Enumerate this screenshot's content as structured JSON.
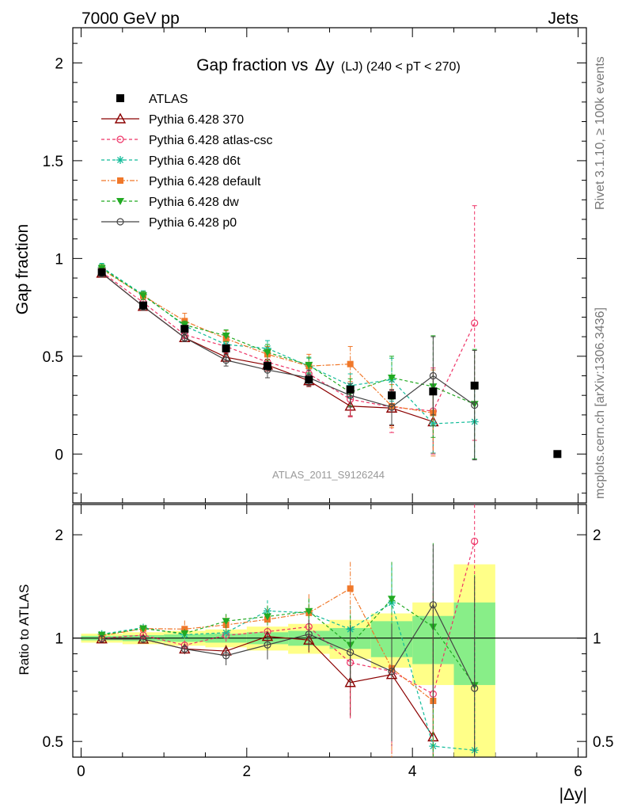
{
  "header": {
    "left": "7000 GeV pp",
    "right": "Jets"
  },
  "side_text": {
    "rivet": "Rivet 3.1.10, ≥ 100k events",
    "source": "mcplots.cern.ch [arXiv:1306.3436]"
  },
  "chart_data": {
    "type": "line",
    "title_main": "Gap fraction vs",
    "title_symbol": "Δy",
    "title_sub": "(LJ) (240 < pT < 270)",
    "watermark": "ATLAS_2011_S9126244",
    "xlabel": "|Δy|",
    "ylabel_top": "Gap fraction",
    "ylabel_bottom": "Ratio to ATLAS",
    "xlim": [
      -0.1,
      6.1
    ],
    "ylim_top": [
      -0.25,
      2.18
    ],
    "ylim_bottom": [
      0.45,
      2.45
    ],
    "ratio_scale": "log",
    "x_ticks": [
      "0",
      "2",
      "4",
      "6"
    ],
    "y_ticks_top": [
      "0",
      "0.5",
      "1",
      "1.5",
      "2"
    ],
    "y_ticks_bottom": [
      "0.5",
      "1",
      "2"
    ],
    "x": [
      0.25,
      0.75,
      1.25,
      1.75,
      2.25,
      2.75,
      3.25,
      3.75,
      4.25,
      4.75
    ],
    "data": {
      "name": "ATLAS",
      "values": [
        0.93,
        0.76,
        0.64,
        0.54,
        0.45,
        0.38,
        0.33,
        0.3,
        0.32,
        0.35
      ],
      "extra_x": 5.75,
      "extra_value": 0.0
    },
    "band_errors": [
      {
        "x0": 0.0,
        "x1": 0.5,
        "stat": 0.015,
        "tot": 0.03
      },
      {
        "x0": 0.5,
        "x1": 1.0,
        "stat": 0.02,
        "tot": 0.04
      },
      {
        "x0": 1.0,
        "x1": 1.5,
        "stat": 0.025,
        "tot": 0.05
      },
      {
        "x0": 1.5,
        "x1": 2.0,
        "stat": 0.03,
        "tot": 0.06
      },
      {
        "x0": 2.0,
        "x1": 2.5,
        "stat": 0.04,
        "tot": 0.08
      },
      {
        "x0": 2.5,
        "x1": 3.0,
        "stat": 0.05,
        "tot": 0.1
      },
      {
        "x0": 3.0,
        "x1": 3.5,
        "stat": 0.07,
        "tot": 0.13
      },
      {
        "x0": 3.5,
        "x1": 4.0,
        "stat": 0.12,
        "tot": 0.18
      },
      {
        "x0": 4.0,
        "x1": 4.5,
        "stat": 0.16,
        "tot": 0.27
      },
      {
        "x0": 4.5,
        "x1": 5.0,
        "stat": 0.27,
        "tot": 0.64
      }
    ],
    "series": [
      {
        "name": "Pythia 6.428 370",
        "color": "#8b0000",
        "marker": "triangle",
        "dash": "",
        "values": [
          0.925,
          0.755,
          0.595,
          0.495,
          0.455,
          0.375,
          0.245,
          0.235,
          0.165,
          null
        ],
        "errors": [
          0.02,
          0.02,
          0.02,
          0.02,
          0.03,
          0.03,
          0.05,
          0.09,
          0.16,
          null
        ]
      },
      {
        "name": "Pythia 6.428 atlas-csc",
        "color": "#ee3366",
        "marker": "circle",
        "dash": "4,3",
        "values": [
          0.93,
          0.775,
          0.61,
          0.55,
          0.47,
          0.41,
          0.28,
          0.24,
          0.22,
          0.67
        ],
        "errors": [
          0.02,
          0.02,
          0.02,
          0.03,
          0.03,
          0.04,
          0.09,
          0.13,
          0.22,
          0.6
        ]
      },
      {
        "name": "Pythia 6.428 d6t",
        "color": "#11bb99",
        "marker": "star",
        "dash": "4,3",
        "values": [
          0.955,
          0.815,
          0.655,
          0.56,
          0.54,
          0.45,
          0.35,
          0.38,
          0.155,
          0.165
        ],
        "errors": [
          0.02,
          0.02,
          0.02,
          0.03,
          0.04,
          0.04,
          0.06,
          0.11,
          0.15,
          0.19
        ]
      },
      {
        "name": "Pythia 6.428 default",
        "color": "#f0782a",
        "marker": "square",
        "dash": "6,2,2,2",
        "values": [
          0.945,
          0.81,
          0.68,
          0.59,
          0.51,
          0.45,
          0.46,
          0.245,
          0.21,
          null
        ],
        "errors": [
          0.02,
          0.02,
          0.04,
          0.04,
          0.04,
          0.06,
          0.09,
          0.11,
          0.22,
          null
        ]
      },
      {
        "name": "Pythia 6.428 dw",
        "color": "#22aa22",
        "marker": "triangle-down",
        "dash": "4,3",
        "values": [
          0.95,
          0.81,
          0.66,
          0.605,
          0.52,
          0.455,
          0.315,
          0.39,
          0.345,
          0.255
        ],
        "errors": [
          0.02,
          0.02,
          0.02,
          0.03,
          0.04,
          0.04,
          0.07,
          0.11,
          0.26,
          0.28
        ]
      },
      {
        "name": "Pythia 6.428 p0",
        "color": "#444444",
        "marker": "circle",
        "dash": "",
        "values": [
          0.925,
          0.755,
          0.595,
          0.48,
          0.43,
          0.39,
          0.3,
          0.24,
          0.4,
          0.25
        ],
        "errors": [
          0.02,
          0.02,
          0.02,
          0.03,
          0.04,
          0.04,
          0.06,
          0.09,
          0.2,
          0.28
        ]
      }
    ]
  }
}
